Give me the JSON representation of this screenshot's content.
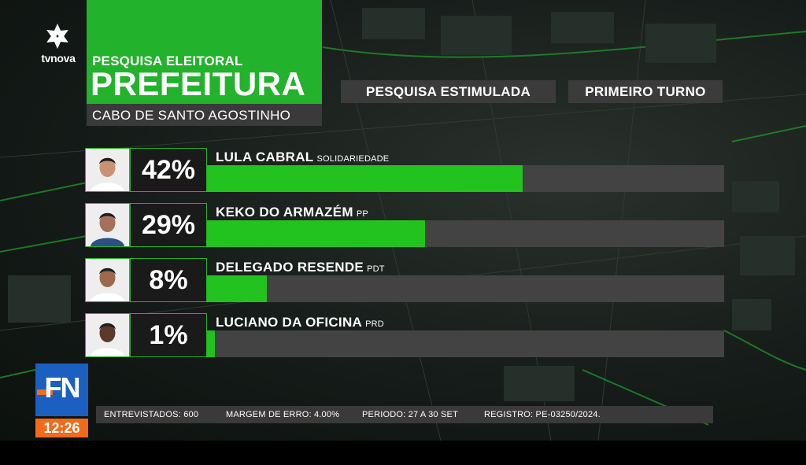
{
  "brand": {
    "logo_text": "tvnova",
    "news_badge": "FN",
    "clock": "12:26"
  },
  "header": {
    "subtitle": "PESQUISA ELEITORAL",
    "title": "PREFEITURA",
    "city": "CABO DE SANTO AGOSTINHO"
  },
  "tags": {
    "type": "PESQUISA ESTIMULADA",
    "round": "PRIMEIRO TURNO"
  },
  "colors": {
    "accent": "#22b22b",
    "bar_fill": "#22c21f",
    "bar_track": "#434343",
    "badge_blue": "#1b5fc1",
    "badge_orange": "#f26a1b"
  },
  "chart_data": {
    "type": "bar",
    "orientation": "horizontal",
    "categories": [
      "LULA CABRAL",
      "KEKO DO ARMAZÉM",
      "DELEGADO RESENDE",
      "LUCIANO DA OFICINA"
    ],
    "parties": [
      "SOLIDARIEDADE",
      "PP",
      "PDT",
      "PRD"
    ],
    "labels": [
      "42%",
      "29%",
      "8%",
      "1%"
    ],
    "values": [
      42,
      29,
      8,
      1
    ],
    "xlim": [
      0,
      100
    ]
  },
  "footer": {
    "interviewed": "ENTREVISTADOS: 600",
    "margin": "MARGEM DE ERRO: 4.00%",
    "period": "PERIODO: 27 A 30 SET",
    "registry": "REGISTRO: PE-03250/2024."
  }
}
